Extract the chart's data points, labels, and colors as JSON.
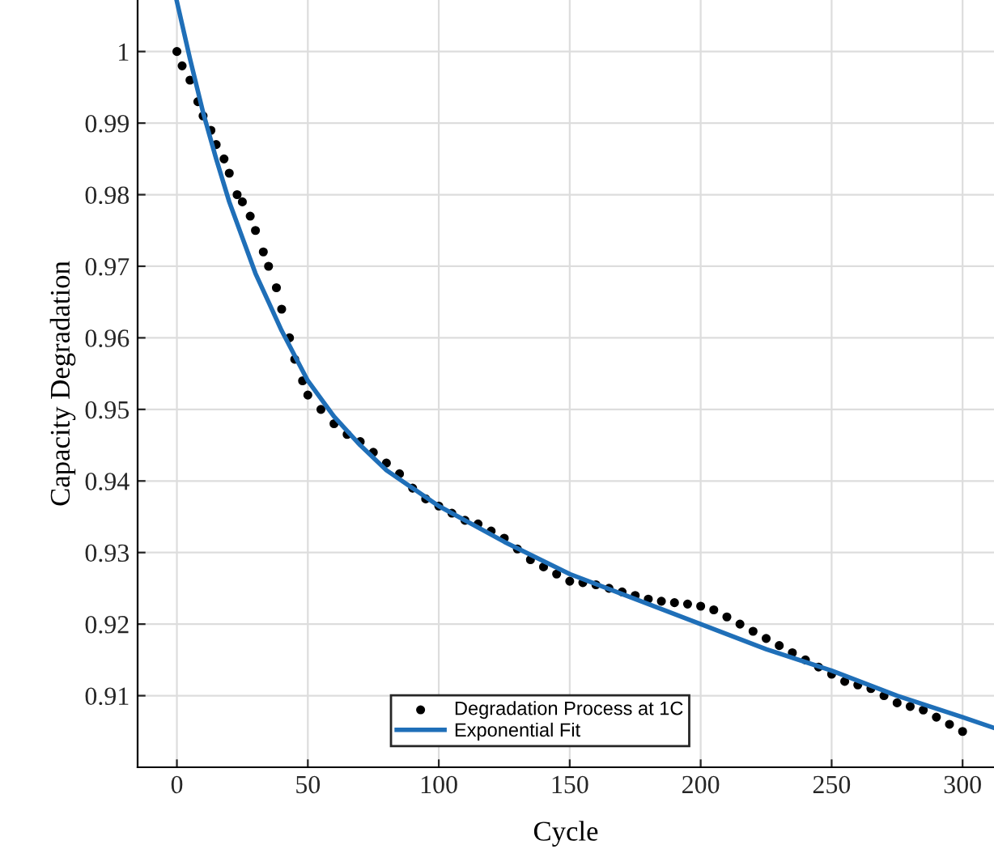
{
  "chart_data": {
    "type": "scatter",
    "xlabel": "Cycle",
    "ylabel": "Capacity Degradation",
    "xlim": [
      -15,
      312
    ],
    "ylim": [
      0.9,
      1.0072
    ],
    "xticks": [
      0,
      50,
      100,
      150,
      200,
      250,
      300
    ],
    "yticks": [
      0.91,
      0.92,
      0.93,
      0.94,
      0.95,
      0.96,
      0.97,
      0.98,
      0.99,
      1
    ],
    "grid": true,
    "legend": "bottom",
    "series": [
      {
        "name": "Degradation Process at 1C",
        "color": "#000000",
        "marker": "circle",
        "x": [
          0,
          2,
          5,
          8,
          10,
          13,
          15,
          18,
          20,
          23,
          25,
          28,
          30,
          33,
          35,
          38,
          40,
          43,
          45,
          48,
          50,
          55,
          60,
          65,
          70,
          75,
          80,
          85,
          90,
          95,
          100,
          105,
          110,
          115,
          120,
          125,
          130,
          135,
          140,
          145,
          150,
          155,
          160,
          165,
          170,
          175,
          180,
          185,
          190,
          195,
          200,
          205,
          210,
          215,
          220,
          225,
          230,
          235,
          240,
          245,
          250,
          255,
          260,
          265,
          270,
          275,
          280,
          285,
          290,
          295,
          300
        ],
        "values": [
          1.0,
          0.998,
          0.996,
          0.993,
          0.991,
          0.989,
          0.987,
          0.985,
          0.983,
          0.98,
          0.979,
          0.977,
          0.975,
          0.972,
          0.97,
          0.967,
          0.964,
          0.96,
          0.957,
          0.954,
          0.952,
          0.95,
          0.948,
          0.9465,
          0.9455,
          0.944,
          0.9425,
          0.941,
          0.939,
          0.9375,
          0.9365,
          0.9355,
          0.9345,
          0.934,
          0.933,
          0.932,
          0.9305,
          0.929,
          0.928,
          0.927,
          0.926,
          0.9258,
          0.9255,
          0.925,
          0.9245,
          0.924,
          0.9235,
          0.9232,
          0.923,
          0.9228,
          0.9225,
          0.922,
          0.921,
          0.92,
          0.919,
          0.918,
          0.917,
          0.916,
          0.915,
          0.914,
          0.913,
          0.912,
          0.9115,
          0.911,
          0.91,
          0.909,
          0.9085,
          0.908,
          0.907,
          0.906,
          0.905
        ]
      },
      {
        "name": "Exponential Fit",
        "type": "line",
        "color": "#1f6fb8",
        "line_style": "solid",
        "x": [
          0,
          5,
          10,
          15,
          20,
          25,
          30,
          35,
          40,
          50,
          60,
          70,
          80,
          100,
          125,
          150,
          175,
          200,
          225,
          250,
          275,
          300,
          312
        ],
        "values": [
          1.007,
          0.999,
          0.9915,
          0.985,
          0.979,
          0.974,
          0.969,
          0.965,
          0.961,
          0.954,
          0.949,
          0.945,
          0.9415,
          0.9365,
          0.9315,
          0.927,
          0.9235,
          0.92,
          0.9165,
          0.9135,
          0.91,
          0.907,
          0.9055
        ]
      }
    ]
  }
}
